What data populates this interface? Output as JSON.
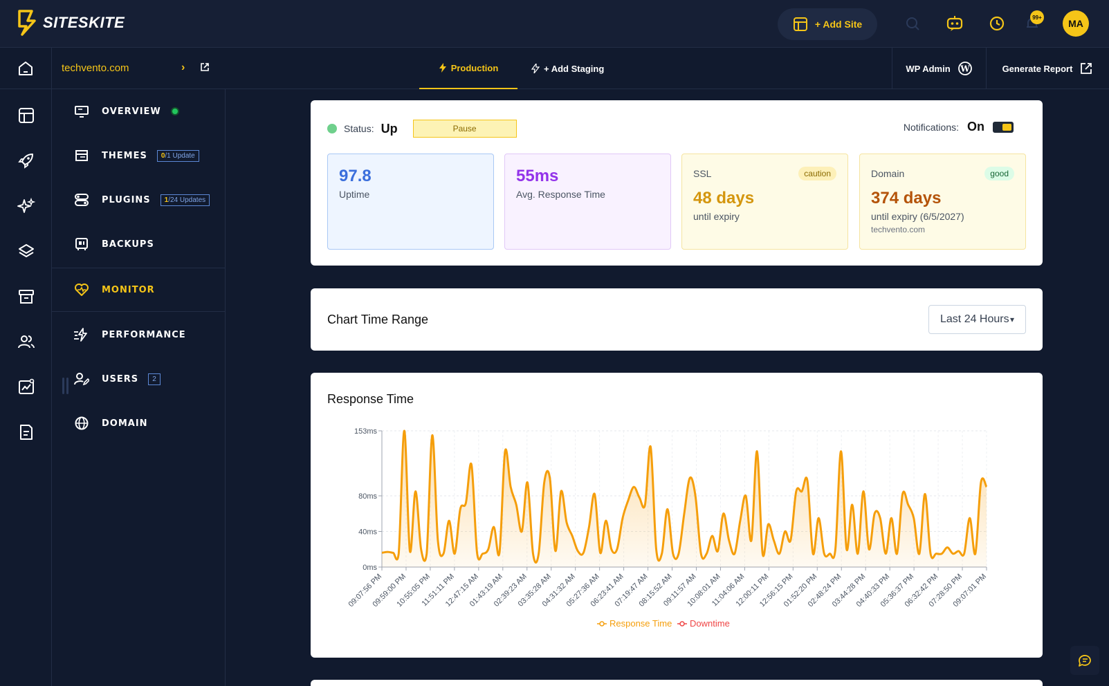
{
  "header": {
    "brand": "SITESKITE",
    "add_site_label": "+ Add Site",
    "notif_badge": "99+",
    "avatar_initials": "MA",
    "icons": [
      "search-icon",
      "robot-support-icon",
      "clock-icon",
      "bell-icon"
    ]
  },
  "subbar": {
    "site_name": "techvento.com",
    "tabs": [
      {
        "label": "Production",
        "active": true
      },
      {
        "label": "+ Add Staging",
        "active": false
      }
    ],
    "wp_admin_label": "WP Admin",
    "generate_report_label": "Generate Report"
  },
  "rail": {
    "icons": [
      "layout-icon",
      "rocket-icon",
      "sparkles-icon",
      "layers-icon",
      "archive-icon",
      "users-icon",
      "chart-image-icon",
      "report-icon"
    ]
  },
  "nav": {
    "items": [
      {
        "label": "OVERVIEW",
        "icon": "overview-icon",
        "status": "online"
      },
      {
        "label": "THEMES",
        "icon": "themes-icon",
        "badge_count": "0",
        "badge_text": "/1 Update"
      },
      {
        "label": "PLUGINS",
        "icon": "plugins-icon",
        "badge_count": "1",
        "badge_text": "/24 Updates"
      },
      {
        "label": "BACKUPS",
        "icon": "backups-icon"
      },
      {
        "label": "MONITOR",
        "icon": "heart-monitor-icon",
        "active": true
      },
      {
        "label": "PERFORMANCE",
        "icon": "performance-icon"
      },
      {
        "label": "USERS",
        "icon": "users-edit-icon",
        "badge": "2"
      },
      {
        "label": "DOMAIN",
        "icon": "globe-icon"
      }
    ]
  },
  "status": {
    "status_label": "Status:",
    "status_value": "Up",
    "pause_label": "Pause",
    "notifications_label": "Notifications:",
    "notifications_value": "On"
  },
  "stats": {
    "uptime": {
      "value": "97.8",
      "label": "Uptime"
    },
    "response": {
      "value": "55ms",
      "label": "Avg. Response Time"
    },
    "ssl": {
      "title": "SSL",
      "pill": "caution",
      "value": "48 days",
      "label": "until expiry"
    },
    "domain": {
      "title": "Domain",
      "pill": "good",
      "value": "374 days",
      "label": "until expiry (6/5/2027)",
      "sub": "techvento.com"
    }
  },
  "range": {
    "title": "Chart Time Range",
    "selected": "Last 24 Hours"
  },
  "chart_data": {
    "type": "area",
    "title": "Response Time",
    "ylim": [
      0,
      153
    ],
    "yticks": [
      "0ms",
      "40ms",
      "80ms",
      "153ms"
    ],
    "ytick_values": [
      0,
      40,
      80,
      153
    ],
    "xticks": [
      "09:07:56 PM",
      "09:59:00 PM",
      "10:55:05 PM",
      "11:51:11 PM",
      "12:47:15 AM",
      "01:43:19 AM",
      "02:39:23 AM",
      "03:35:28 AM",
      "04:31:32 AM",
      "05:27:36 AM",
      "06:23:41 AM",
      "07:19:47 AM",
      "08:15:52 AM",
      "09:11:57 AM",
      "10:08:01 AM",
      "11:04:06 AM",
      "12:00:11 PM",
      "12:56:15 PM",
      "01:52:20 PM",
      "02:48:24 PM",
      "03:44:28 PM",
      "04:40:33 PM",
      "05:36:37 PM",
      "06:32:42 PM",
      "07:28:50 PM",
      "09:07:01 PM"
    ],
    "series": [
      {
        "name": "Response Time",
        "color": "#f59e0b",
        "values": [
          16,
          17,
          16,
          15,
          153,
          18,
          85,
          20,
          15,
          148,
          30,
          15,
          52,
          15,
          65,
          72,
          115,
          16,
          15,
          20,
          45,
          16,
          130,
          90,
          70,
          40,
          95,
          15,
          15,
          95,
          100,
          18,
          85,
          50,
          35,
          18,
          16,
          45,
          82,
          16,
          52,
          20,
          20,
          55,
          75,
          90,
          78,
          70,
          135,
          20,
          15,
          65,
          15,
          15,
          60,
          100,
          80,
          15,
          15,
          35,
          18,
          60,
          30,
          15,
          52,
          80,
          30,
          130,
          15,
          48,
          30,
          15,
          40,
          30,
          85,
          85,
          97,
          15,
          55,
          15,
          15,
          20,
          130,
          20,
          70,
          15,
          85,
          20,
          60,
          55,
          15,
          55,
          15,
          82,
          70,
          55,
          15,
          82,
          15,
          15,
          15,
          22,
          15,
          18,
          15,
          55,
          15,
          95,
          90
        ]
      },
      {
        "name": "Downtime",
        "color": "#ef4444",
        "values": []
      }
    ],
    "legend_position": "bottom",
    "grid": true
  }
}
